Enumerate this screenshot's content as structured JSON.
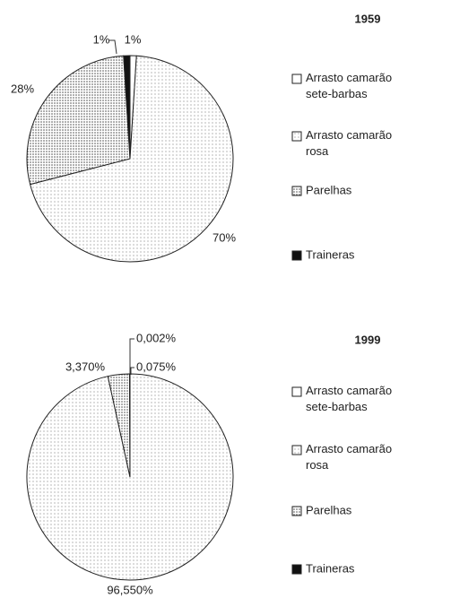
{
  "chart_data": [
    {
      "type": "pie",
      "title": "1959",
      "categories": [
        "Arrasto camarão sete-barbas",
        "Arrasto camarão rosa",
        "Parelhas",
        "Traineras"
      ],
      "values": [
        1,
        70,
        28,
        1
      ],
      "value_labels": [
        "1%",
        "70%",
        "28%",
        "1%"
      ]
    },
    {
      "type": "pie",
      "title": "1999",
      "categories": [
        "Arrasto camarão sete-barbas",
        "Arrasto camarão rosa",
        "Parelhas",
        "Traineras"
      ],
      "values": [
        0.002,
        96.55,
        3.37,
        0.075
      ],
      "value_labels": [
        "0,002%",
        "96,550%",
        "3,370%",
        "0,075%"
      ]
    }
  ]
}
